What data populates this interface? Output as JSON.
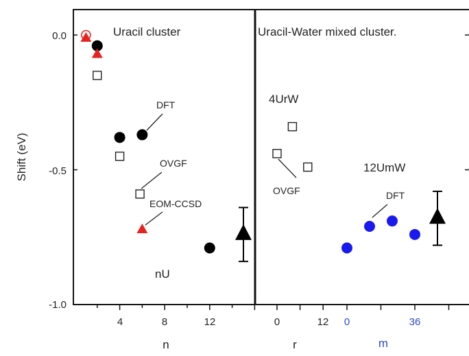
{
  "chart_data": [
    {
      "type": "scatter",
      "panel": "left",
      "title": "Uracil cluster",
      "xlabel": "n",
      "ylabel": "Shift (eV)",
      "xlim": [
        0,
        17.5
      ],
      "ylim": [
        -1.0,
        0.1
      ],
      "xticks": [
        4,
        8,
        12
      ],
      "yticks": [
        0.0,
        -0.5,
        -1.0
      ],
      "ytick_labels": [
        "0.0",
        "-0.5",
        "-1.0"
      ],
      "series": [
        {
          "name": "DFT",
          "marker": "circle-filled",
          "color": "#000000",
          "points": [
            {
              "x": 2,
              "y": -0.04
            },
            {
              "x": 4,
              "y": -0.38
            },
            {
              "x": 6,
              "y": -0.37
            },
            {
              "x": 12,
              "y": -0.79
            }
          ]
        },
        {
          "name": "OVGF",
          "marker": "square-open",
          "color": "#000000",
          "points": [
            {
              "x": 2,
              "y": -0.15
            },
            {
              "x": 4,
              "y": -0.45
            },
            {
              "x": 5.8,
              "y": -0.59
            }
          ]
        },
        {
          "name": "EOM-CCSD",
          "marker": "triangle-filled",
          "color": "#e8231f",
          "points": [
            {
              "x": 1,
              "y": -0.01
            },
            {
              "x": 2,
              "y": -0.07
            },
            {
              "x": 6,
              "y": -0.72
            }
          ]
        },
        {
          "name": "",
          "marker": "circle-open",
          "color": "#e8231f",
          "points": [
            {
              "x": 1,
              "y": 0.0
            }
          ]
        },
        {
          "name": "nU",
          "marker": "triangle-errorbar",
          "color": "#000000",
          "points": [
            {
              "x": 15,
              "y": -0.74,
              "err_low": -0.84,
              "err_high": -0.64
            }
          ]
        }
      ],
      "annotations": [
        "DFT",
        "OVGF",
        "EOM-CCSD",
        "nU"
      ]
    },
    {
      "type": "scatter",
      "panel": "right",
      "title": "Uracil-Water mixed cluster.",
      "xlabel": "r",
      "xlabel2": "m",
      "xticks_r": [
        0,
        12
      ],
      "xticks_m": [
        0,
        36
      ],
      "ylim": [
        -1.0,
        0.1
      ],
      "series": [
        {
          "name": "OVGF",
          "marker": "square-open",
          "color": "#000000",
          "points": [
            {
              "x": 0,
              "y": -0.44
            },
            {
              "x": 4,
              "y": -0.34
            },
            {
              "x": 8,
              "y": -0.49
            }
          ]
        },
        {
          "name": "DFT",
          "marker": "circle-filled",
          "color": "#1a1af0",
          "points": [
            {
              "x": 0,
              "y": -0.79
            },
            {
              "x": 12,
              "y": -0.71
            },
            {
              "x": 24,
              "y": -0.69
            },
            {
              "x": 36,
              "y": -0.74
            }
          ]
        },
        {
          "name": "12UmW",
          "marker": "triangle-errorbar",
          "color": "#000000",
          "points": [
            {
              "x": 48,
              "y": -0.68,
              "err_low": -0.78,
              "err_high": -0.58
            }
          ]
        }
      ],
      "annotations": [
        "4UrW",
        "12UmW",
        "OVGF",
        "DFT"
      ]
    }
  ]
}
